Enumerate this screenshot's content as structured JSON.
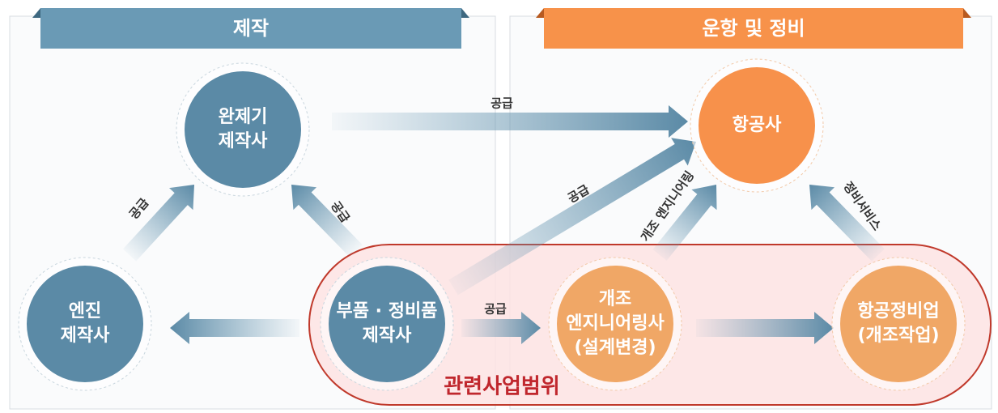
{
  "sections": [
    {
      "title": "제작"
    },
    {
      "title": "운항 및 정비"
    }
  ],
  "nodes": [
    {
      "lines": [
        "완제기",
        "제작사"
      ]
    },
    {
      "lines": [
        "엔진",
        "제작사"
      ]
    },
    {
      "lines": [
        "부품 · 정비품",
        "제작사"
      ]
    },
    {
      "lines": [
        "항공사"
      ]
    },
    {
      "lines": [
        "개조",
        "엔지니어링사",
        "(설계변경)"
      ]
    },
    {
      "lines": [
        "항공정비업",
        "(개조작업)"
      ]
    }
  ],
  "edges": [
    {
      "label": "공급"
    },
    {
      "label": "공급"
    },
    {
      "label": "공급"
    },
    {
      "label": "공급"
    },
    {
      "label": "공급"
    },
    {
      "label": "개조 엔지니어링"
    },
    {
      "label": "정비서비스"
    }
  ],
  "region": {
    "label": "관련사업범위"
  }
}
